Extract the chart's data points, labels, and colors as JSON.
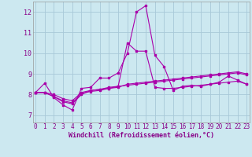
{
  "xlabel": "Windchill (Refroidissement éolien,°C)",
  "background_color": "#cce8f0",
  "grid_color": "#a8c8d8",
  "line_color": "#aa00aa",
  "x_ticks": [
    0,
    1,
    2,
    3,
    4,
    5,
    6,
    7,
    8,
    9,
    10,
    11,
    12,
    13,
    14,
    15,
    16,
    17,
    18,
    19,
    20,
    21,
    22,
    23
  ],
  "y_ticks": [
    7,
    8,
    9,
    10,
    11,
    12
  ],
  "xlim": [
    -0.3,
    23.3
  ],
  "ylim": [
    6.65,
    12.5
  ],
  "series": [
    [
      8.1,
      8.55,
      7.85,
      7.5,
      7.25,
      8.3,
      8.35,
      8.8,
      8.8,
      9.05,
      10.0,
      12.0,
      12.3,
      9.9,
      9.35,
      8.2,
      8.4,
      8.45,
      8.4,
      8.5,
      8.6,
      8.9,
      8.7,
      8.5
    ],
    [
      8.1,
      8.1,
      7.9,
      7.65,
      7.55,
      8.0,
      8.2,
      8.25,
      8.3,
      8.4,
      10.5,
      10.1,
      10.1,
      8.35,
      8.3,
      8.3,
      8.35,
      8.4,
      8.45,
      8.5,
      8.55,
      8.6,
      8.65,
      8.5
    ],
    [
      8.1,
      8.1,
      7.9,
      7.7,
      7.6,
      8.05,
      8.15,
      8.2,
      8.3,
      8.35,
      8.5,
      8.55,
      8.6,
      8.65,
      8.7,
      8.75,
      8.8,
      8.85,
      8.9,
      8.95,
      9.0,
      9.05,
      9.1,
      9.0
    ],
    [
      8.1,
      8.1,
      8.0,
      7.8,
      7.7,
      8.1,
      8.2,
      8.25,
      8.35,
      8.4,
      8.45,
      8.5,
      8.55,
      8.6,
      8.65,
      8.7,
      8.75,
      8.8,
      8.85,
      8.9,
      8.95,
      9.0,
      9.05,
      8.95
    ]
  ],
  "tick_fontsize": 5.5,
  "xlabel_fontsize": 6.0,
  "tick_color": "#880088",
  "xlabel_color": "#880088"
}
